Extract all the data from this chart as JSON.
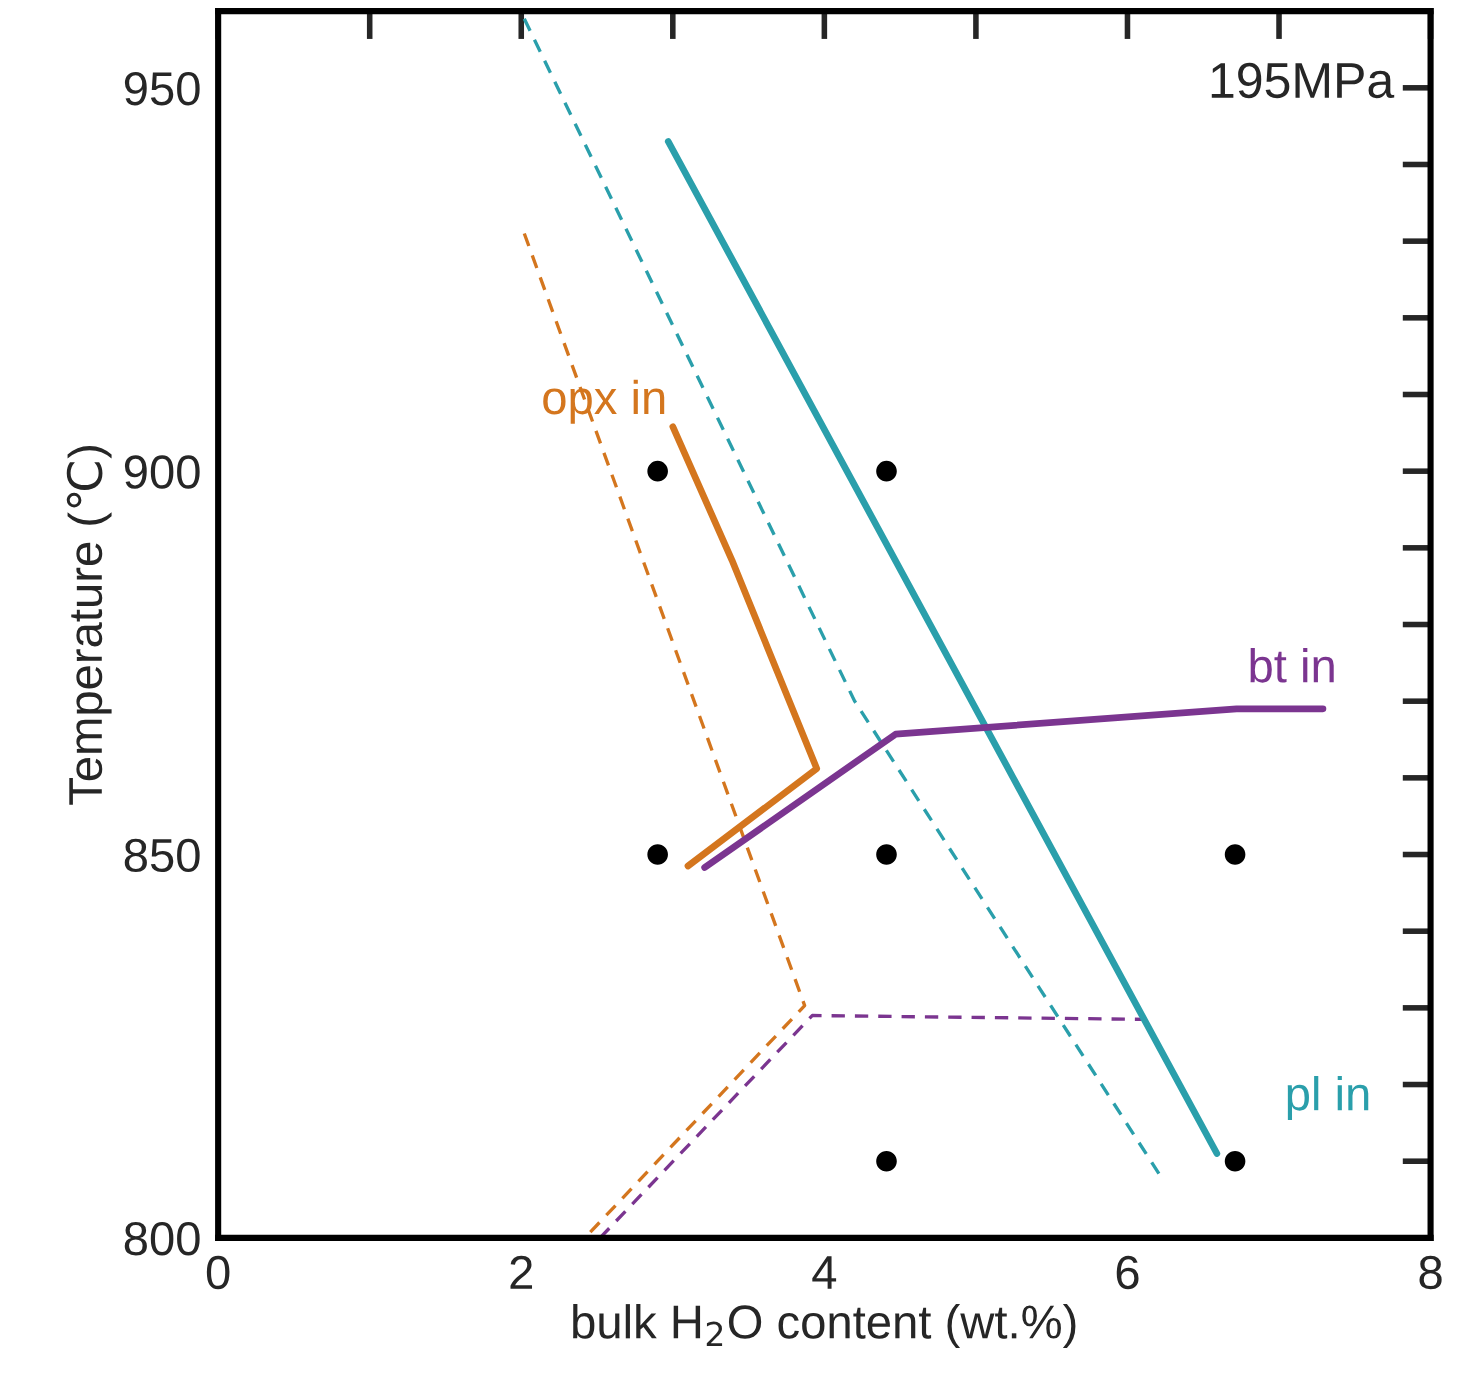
{
  "chart_data": {
    "type": "line",
    "xlabel": "bulk H$_{2}$O content (wt.%)",
    "ylabel": "Temperature (℃)",
    "xlim": [
      0,
      8
    ],
    "ylim": [
      800,
      960
    ],
    "xticks": [
      0,
      {
        "value": 1,
        "label": null
      },
      2,
      {
        "value": 3,
        "label": null
      },
      4,
      {
        "value": 5,
        "label": null
      },
      6,
      {
        "value": 7,
        "label": null
      },
      8
    ],
    "yticks": [
      800,
      {
        "value": 810,
        "label": null
      },
      {
        "value": 820,
        "label": null
      },
      {
        "value": 830,
        "label": null
      },
      {
        "value": 840,
        "label": null
      },
      850,
      {
        "value": 860,
        "label": null
      },
      {
        "value": 870,
        "label": null
      },
      {
        "value": 880,
        "label": null
      },
      {
        "value": 890,
        "label": null
      },
      900,
      {
        "value": 910,
        "label": null
      },
      {
        "value": 920,
        "label": null
      },
      {
        "value": 930,
        "label": null
      },
      {
        "value": 940,
        "label": null
      },
      950
    ],
    "grid": false,
    "legend": false,
    "series": [
      {
        "line_style": "dashed",
        "color": "#2a9fab",
        "x": [
          2.02,
          4.2,
          6.22
        ],
        "values": [
          959,
          870,
          808
        ]
      },
      {
        "line_style": "dashed",
        "color": "#d4761e",
        "x": [
          2.02,
          3.87,
          2.42
        ],
        "values": [
          931,
          830.3,
          800
        ]
      },
      {
        "line_style": "dashed",
        "color": "#7b3590",
        "x": [
          2.52,
          3.92,
          6.12
        ],
        "values": [
          800,
          829,
          828.5
        ]
      },
      {
        "name": "pl in",
        "line_style": "solid",
        "color": "#2a9fab",
        "x": [
          2.97,
          6.59
        ],
        "values": [
          943,
          811
        ]
      },
      {
        "name": "opx in",
        "line_style": "solid",
        "color": "#d4761e",
        "x": [
          3.0,
          3.39,
          3.95,
          3.1
        ],
        "values": [
          905.8,
          888.4,
          861.2,
          848.5
        ]
      },
      {
        "name": "bt in",
        "line_style": "solid",
        "color": "#7b3590",
        "x": [
          3.21,
          4.47,
          6.72,
          7.29
        ],
        "values": [
          848.3,
          865.7,
          869,
          869
        ]
      },
      {
        "type": "scatter",
        "marker": "circle",
        "color": "#000000",
        "x": [
          2.9,
          4.41,
          2.9,
          4.41,
          6.71,
          4.41,
          6.71
        ],
        "values": [
          900,
          900,
          850,
          850,
          850,
          810,
          810
        ]
      }
    ],
    "annotations": [
      "195MPa"
    ]
  }
}
